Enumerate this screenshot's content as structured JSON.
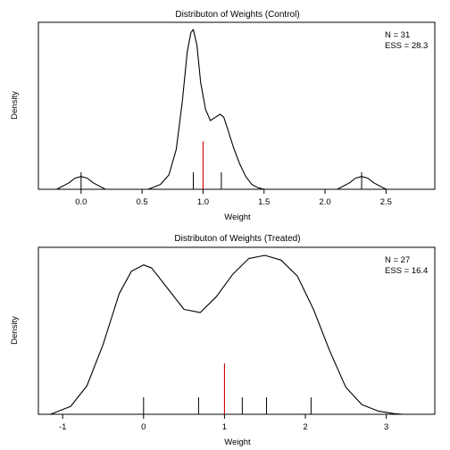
{
  "chart_data": [
    {
      "type": "line",
      "title": "Distributon of Weights (Control)",
      "xlabel": "Weight",
      "ylabel": "Density",
      "xlim": [
        -0.35,
        2.9
      ],
      "ylim": [
        0,
        1
      ],
      "x_ticks": [
        0.0,
        0.5,
        1.0,
        1.5,
        2.0,
        2.5
      ],
      "x_tick_labels": [
        "0.0",
        "0.5",
        "1.0",
        "1.5",
        "2.0",
        "2.5"
      ],
      "stats": [
        "N = 31",
        "ESS = 28.3"
      ],
      "series": [
        {
          "x": [
            -0.2,
            -0.1,
            -0.05,
            0.0,
            0.05,
            0.1,
            0.2,
            0.55,
            0.65,
            0.72,
            0.78,
            0.83,
            0.87,
            0.9,
            0.92,
            0.95,
            0.98,
            1.02,
            1.06,
            1.1,
            1.14,
            1.17,
            1.2,
            1.25,
            1.3,
            1.35,
            1.4,
            1.45,
            1.5,
            2.1,
            2.2,
            2.25,
            2.3,
            2.35,
            2.4,
            2.5
          ],
          "y": [
            0.0,
            0.04,
            0.07,
            0.08,
            0.07,
            0.04,
            0.0,
            0.0,
            0.03,
            0.09,
            0.25,
            0.55,
            0.86,
            0.98,
            1.0,
            0.9,
            0.67,
            0.5,
            0.43,
            0.45,
            0.47,
            0.45,
            0.38,
            0.26,
            0.16,
            0.08,
            0.03,
            0.01,
            0.0,
            0.0,
            0.04,
            0.07,
            0.08,
            0.07,
            0.04,
            0.0
          ]
        }
      ],
      "rug": [
        0.0,
        0.92,
        1.15,
        2.3
      ],
      "reference_line": 1.0,
      "reference_height": 0.3
    },
    {
      "type": "line",
      "title": "Distributon of Weights (Treated)",
      "xlabel": "Weight",
      "ylabel": "Density",
      "xlim": [
        -1.3,
        3.6
      ],
      "ylim": [
        0,
        1
      ],
      "x_ticks": [
        -1,
        0,
        1,
        2,
        3
      ],
      "x_tick_labels": [
        "-1",
        "0",
        "1",
        "2",
        "3"
      ],
      "stats": [
        "N = 27",
        "ESS = 16.4"
      ],
      "series": [
        {
          "x": [
            -1.15,
            -0.9,
            -0.7,
            -0.5,
            -0.3,
            -0.15,
            0.0,
            0.1,
            0.3,
            0.5,
            0.7,
            0.9,
            1.1,
            1.3,
            1.5,
            1.7,
            1.9,
            2.1,
            2.3,
            2.5,
            2.7,
            2.9,
            3.1,
            3.2
          ],
          "y": [
            0.0,
            0.05,
            0.18,
            0.44,
            0.76,
            0.9,
            0.94,
            0.92,
            0.79,
            0.66,
            0.64,
            0.74,
            0.88,
            0.98,
            1.0,
            0.97,
            0.87,
            0.66,
            0.4,
            0.17,
            0.06,
            0.02,
            0.004,
            0.0
          ]
        }
      ],
      "rug": [
        0.0,
        0.68,
        1.22,
        1.52,
        2.07
      ],
      "reference_line": 1.0,
      "reference_height": 0.32
    }
  ]
}
